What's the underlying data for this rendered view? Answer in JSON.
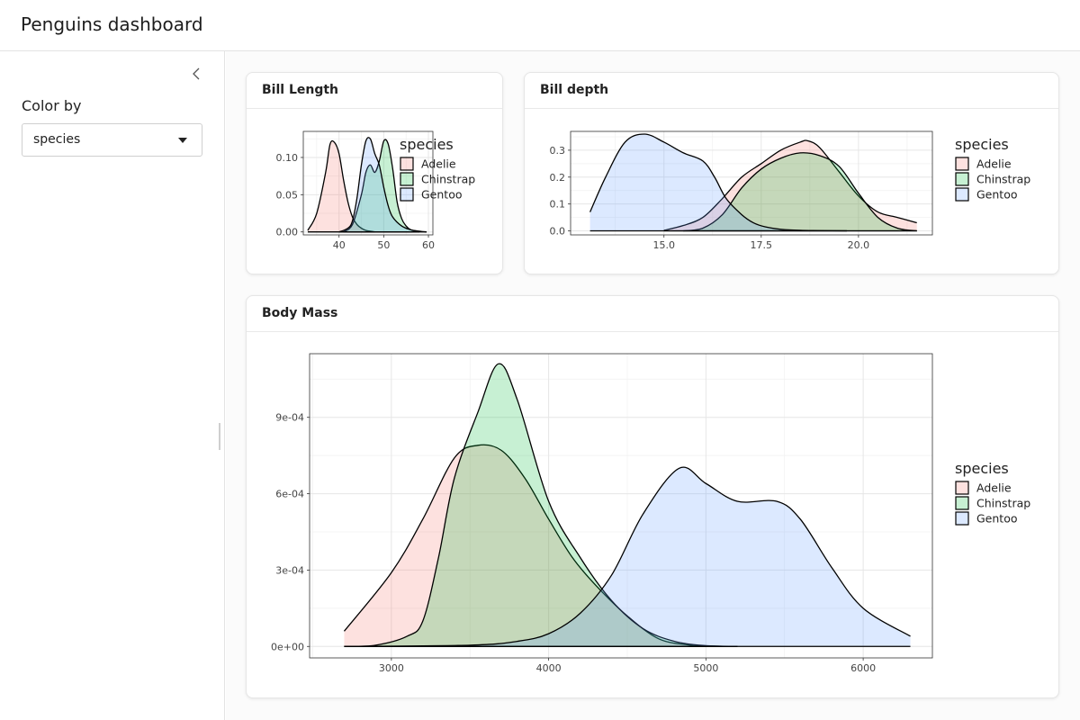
{
  "app": {
    "title": "Penguins dashboard"
  },
  "sidebar": {
    "color_by_label": "Color by",
    "select": {
      "value": "species",
      "options": [
        "species"
      ]
    }
  },
  "colors": {
    "Adelie": "#f8766d",
    "Chinstrap": "#00ba38",
    "Gentoo": "#619cff"
  },
  "cards": {
    "bill_length": {
      "title": "Bill Length"
    },
    "bill_depth": {
      "title": "Bill depth"
    },
    "body_mass": {
      "title": "Body Mass"
    }
  },
  "chart_data": [
    {
      "type": "area",
      "title": "Bill Length",
      "xlim": [
        32,
        61
      ],
      "ylim": [
        -0.004,
        0.135
      ],
      "x_ticks": [
        {
          "v": 40,
          "label": "40"
        },
        {
          "v": 50,
          "label": "50"
        },
        {
          "v": 60,
          "label": "60"
        }
      ],
      "y_ticks": [
        {
          "v": 0.0,
          "label": "0.00"
        },
        {
          "v": 0.05,
          "label": "0.05"
        },
        {
          "v": 0.1,
          "label": "0.10"
        }
      ],
      "legend": {
        "title": "species",
        "placement": "right",
        "entries": [
          "Adelie",
          "Chinstrap",
          "Gentoo"
        ]
      },
      "series": [
        {
          "name": "Adelie",
          "x": [
            33,
            35,
            37,
            38,
            39,
            40,
            41,
            42,
            43,
            44,
            45,
            46,
            47,
            48
          ],
          "y": [
            0.002,
            0.025,
            0.08,
            0.118,
            0.12,
            0.105,
            0.07,
            0.04,
            0.02,
            0.01,
            0.005,
            0.002,
            0.001,
            0
          ]
        },
        {
          "name": "Chinstrap",
          "x": [
            41,
            43,
            45,
            46,
            47,
            48,
            49,
            50,
            51,
            52,
            53,
            54,
            55,
            56,
            58
          ],
          "y": [
            0,
            0.01,
            0.05,
            0.08,
            0.09,
            0.08,
            0.095,
            0.122,
            0.118,
            0.085,
            0.04,
            0.018,
            0.008,
            0.003,
            0
          ]
        },
        {
          "name": "Gentoo",
          "x": [
            40,
            42,
            43,
            44,
            45,
            46,
            47,
            48,
            49,
            50,
            51,
            52,
            54,
            56,
            58,
            59.6
          ],
          "y": [
            0,
            0.005,
            0.015,
            0.045,
            0.09,
            0.122,
            0.125,
            0.105,
            0.09,
            0.06,
            0.035,
            0.02,
            0.008,
            0.003,
            0.001,
            0
          ]
        }
      ]
    },
    {
      "type": "area",
      "title": "Bill depth",
      "xlim": [
        12.6,
        21.9
      ],
      "ylim": [
        -0.015,
        0.37
      ],
      "x_ticks": [
        {
          "v": 15,
          "label": "15.0"
        },
        {
          "v": 17.5,
          "label": "17.5"
        },
        {
          "v": 20,
          "label": "20.0"
        }
      ],
      "y_ticks": [
        {
          "v": 0.0,
          "label": "0.0"
        },
        {
          "v": 0.1,
          "label": "0.1"
        },
        {
          "v": 0.2,
          "label": "0.2"
        },
        {
          "v": 0.3,
          "label": "0.3"
        }
      ],
      "legend": {
        "title": "species",
        "placement": "right",
        "entries": [
          "Adelie",
          "Chinstrap",
          "Gentoo"
        ]
      },
      "series": [
        {
          "name": "Adelie",
          "x": [
            15,
            15.5,
            16,
            16.5,
            17,
            17.5,
            18,
            18.5,
            18.7,
            19,
            19.5,
            20,
            20.5,
            21,
            21.5
          ],
          "y": [
            0.002,
            0.02,
            0.05,
            0.12,
            0.2,
            0.25,
            0.3,
            0.33,
            0.335,
            0.31,
            0.22,
            0.13,
            0.07,
            0.05,
            0.03
          ]
        },
        {
          "name": "Chinstrap",
          "x": [
            15.5,
            16,
            16.5,
            17,
            17.5,
            18,
            18.5,
            19,
            19.5,
            20,
            20.5,
            21,
            21.5
          ],
          "y": [
            0,
            0.01,
            0.06,
            0.16,
            0.23,
            0.27,
            0.29,
            0.28,
            0.24,
            0.14,
            0.05,
            0.01,
            0
          ]
        },
        {
          "name": "Gentoo",
          "x": [
            13.1,
            13.5,
            14,
            14.5,
            15,
            15.5,
            16,
            16.3,
            16.6,
            17,
            17.3,
            17.6,
            18,
            18.5,
            19,
            19.7
          ],
          "y": [
            0.07,
            0.2,
            0.33,
            0.36,
            0.33,
            0.29,
            0.26,
            0.2,
            0.12,
            0.06,
            0.03,
            0.015,
            0.006,
            0.002,
            0.001,
            0
          ]
        }
      ]
    },
    {
      "type": "area",
      "title": "Body Mass",
      "xlim": [
        2480,
        6440
      ],
      "ylim": [
        -4.5e-05,
        0.00115
      ],
      "x_ticks": [
        {
          "v": 3000,
          "label": "3000"
        },
        {
          "v": 4000,
          "label": "4000"
        },
        {
          "v": 5000,
          "label": "5000"
        },
        {
          "v": 6000,
          "label": "6000"
        }
      ],
      "y_ticks": [
        {
          "v": 0,
          "label": "0e+00"
        },
        {
          "v": 0.0003,
          "label": "3e-04"
        },
        {
          "v": 0.0006,
          "label": "6e-04"
        },
        {
          "v": 0.0009,
          "label": "9e-04"
        }
      ],
      "legend": {
        "title": "species",
        "placement": "right",
        "entries": [
          "Adelie",
          "Chinstrap",
          "Gentoo"
        ]
      },
      "series": [
        {
          "name": "Adelie",
          "x": [
            2700,
            3000,
            3200,
            3400,
            3550,
            3700,
            3850,
            4000,
            4150,
            4300,
            4500,
            4700,
            4900,
            5000,
            5200
          ],
          "y": [
            6e-05,
            0.00029,
            0.0005,
            0.00074,
            0.00079,
            0.00077,
            0.00066,
            0.0005,
            0.00035,
            0.00024,
            0.00012,
            3e-05,
            5e-06,
            2e-06,
            0
          ]
        },
        {
          "name": "Chinstrap",
          "x": [
            2700,
            2900,
            3100,
            3200,
            3300,
            3400,
            3550,
            3680,
            3800,
            4000,
            4200,
            4400,
            4600,
            4800,
            5000,
            5200
          ],
          "y": [
            0,
            5e-06,
            4e-05,
            0.0001,
            0.00035,
            0.00066,
            0.00092,
            0.00111,
            0.00097,
            0.00057,
            0.00035,
            0.00018,
            7e-05,
            2e-05,
            3e-06,
            0
          ]
        },
        {
          "name": "Gentoo",
          "x": [
            2700,
            3500,
            3800,
            4000,
            4200,
            4400,
            4600,
            4830,
            5000,
            5200,
            5450,
            5600,
            5800,
            6000,
            6300
          ],
          "y": [
            0,
            5e-06,
            2e-05,
            5e-05,
            0.00013,
            0.00028,
            0.00052,
            0.0007,
            0.00064,
            0.00057,
            0.00057,
            0.0005,
            0.00031,
            0.00015,
            4e-05
          ]
        }
      ]
    }
  ]
}
